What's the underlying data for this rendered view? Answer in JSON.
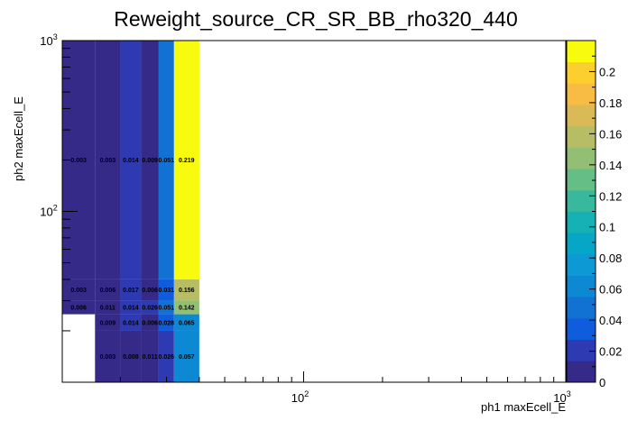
{
  "chart_data": {
    "type": "heatmap",
    "title": "Reweight_source_CR_SR_BB_rho320_440",
    "xlabel": "ph1 maxEcell_E",
    "ylabel": "ph2 maxEcell_E",
    "x_scale": "log",
    "y_scale": "log",
    "xlim": [
      12,
      1000
    ],
    "ylim": [
      10,
      1000
    ],
    "x_tick_labels": [
      "10^2",
      "10^3"
    ],
    "y_tick_labels": [
      "10^2",
      "10^3"
    ],
    "x_bin_edges": [
      12,
      16,
      20,
      24,
      28,
      32,
      40,
      1000
    ],
    "y_bin_edges": [
      10,
      20,
      25,
      30,
      40,
      1000
    ],
    "cells": [
      {
        "x": 5,
        "y": 0,
        "v": 0.057,
        "label": "0.057"
      },
      {
        "x": 4,
        "y": 0,
        "v": 0.026,
        "label": "0.026"
      },
      {
        "x": 3,
        "y": 0,
        "v": 0.011,
        "label": "0.011"
      },
      {
        "x": 2,
        "y": 0,
        "v": 0.008,
        "label": "0.008"
      },
      {
        "x": 1,
        "y": 0,
        "v": 0.003,
        "label": "0.003"
      },
      {
        "x": 5,
        "y": 1,
        "v": 0.065,
        "label": "0.065"
      },
      {
        "x": 4,
        "y": 1,
        "v": 0.028,
        "label": "0.028"
      },
      {
        "x": 3,
        "y": 1,
        "v": 0.006,
        "label": "0.006"
      },
      {
        "x": 2,
        "y": 1,
        "v": 0.014,
        "label": "0.014"
      },
      {
        "x": 1,
        "y": 1,
        "v": 0.009,
        "label": "0.009"
      },
      {
        "x": 5,
        "y": 2,
        "v": 0.142,
        "label": "0.142"
      },
      {
        "x": 4,
        "y": 2,
        "v": 0.051,
        "label": "0.051"
      },
      {
        "x": 3,
        "y": 2,
        "v": 0.026,
        "label": "0.026"
      },
      {
        "x": 2,
        "y": 2,
        "v": 0.014,
        "label": "0.014"
      },
      {
        "x": 1,
        "y": 2,
        "v": 0.011,
        "label": "0.011"
      },
      {
        "x": 0,
        "y": 2,
        "v": 0.006,
        "label": "0.006"
      },
      {
        "x": 5,
        "y": 3,
        "v": 0.156,
        "label": "0.156"
      },
      {
        "x": 4,
        "y": 3,
        "v": 0.031,
        "label": "0.031"
      },
      {
        "x": 3,
        "y": 3,
        "v": 0.006,
        "label": "0.006"
      },
      {
        "x": 2,
        "y": 3,
        "v": 0.017,
        "label": "0.017"
      },
      {
        "x": 1,
        "y": 3,
        "v": 0.006,
        "label": "0.006"
      },
      {
        "x": 0,
        "y": 3,
        "v": 0.003,
        "label": "0.003"
      },
      {
        "x": 5,
        "y": 4,
        "v": 0.219,
        "label": "0.219"
      },
      {
        "x": 4,
        "y": 4,
        "v": 0.051,
        "label": "0.051"
      },
      {
        "x": 3,
        "y": 4,
        "v": 0.009,
        "label": "0.009"
      },
      {
        "x": 2,
        "y": 4,
        "v": 0.014,
        "label": "0.014"
      },
      {
        "x": 1,
        "y": 4,
        "v": 0.003,
        "label": "0.003"
      },
      {
        "x": 0,
        "y": 4,
        "v": 0.003,
        "label": "0.003"
      }
    ],
    "colorbar": {
      "min": 0,
      "max": 0.22,
      "tick_labels": [
        "0",
        "0.02",
        "0.04",
        "0.06",
        "0.08",
        "0.1",
        "0.12",
        "0.14",
        "0.16",
        "0.18",
        "0.2"
      ],
      "colors": [
        "#352a87",
        "#2d3ab2",
        "#0f5cdd",
        "#1272d4",
        "#0d88d2",
        "#0c99d4",
        "#06a7c6",
        "#15b1b4",
        "#38b99e",
        "#65be86",
        "#92bf73",
        "#b7bd64",
        "#d9ba56",
        "#f8bb44",
        "#fcce2e",
        "#f9fb0e"
      ]
    }
  }
}
